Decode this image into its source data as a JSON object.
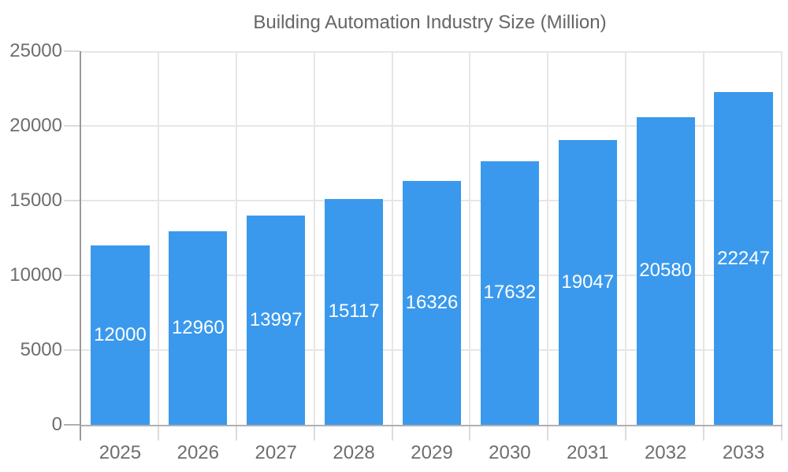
{
  "chart_data": {
    "type": "bar",
    "title": "Building Automation Industry Size (Million)",
    "categories": [
      "2025",
      "2026",
      "2027",
      "2028",
      "2029",
      "2030",
      "2031",
      "2032",
      "2033"
    ],
    "values": [
      12000,
      12960,
      13997,
      15117,
      16326,
      17632,
      19047,
      20580,
      22247
    ],
    "series": [
      {
        "name": "Building Automation Industry Size (Million)",
        "values": [
          12000,
          12960,
          13997,
          15117,
          16326,
          17632,
          19047,
          20580,
          22247
        ]
      }
    ],
    "xlabel": "",
    "ylabel": "",
    "ylim": [
      0,
      25000
    ],
    "y_ticks": [
      0,
      5000,
      10000,
      15000,
      20000,
      25000
    ],
    "grid": "both",
    "legend_position": "top",
    "value_labels_position": "inside-center",
    "colors": {
      "bar": "#3A99EC",
      "gridline": "#E6E6E6",
      "tick": "#DCDCDC",
      "axis_y_line": "#9A9A9A",
      "axis_x_line": "#B0B0B0",
      "axis_text": "#6E6E6E",
      "legend_text": "#666666",
      "bar_label_text": "#FFFFFF",
      "background": "#FFFFFF"
    }
  }
}
